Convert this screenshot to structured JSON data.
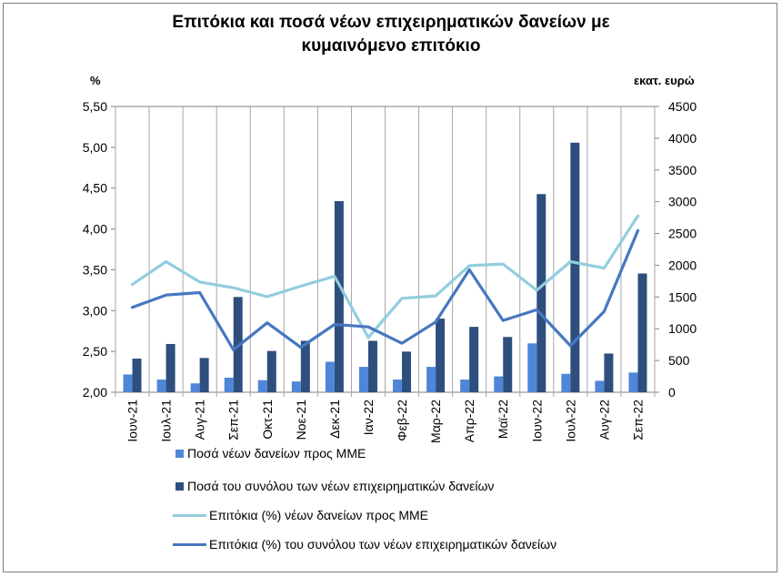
{
  "title_line1": "Επιτόκια και ποσά νέων επιχειρηματικών δανείων με",
  "title_line2": "κυμαινόμενο επιτόκιο",
  "unit_left": "%",
  "unit_right": "εκατ. ευρώ",
  "colors": {
    "sme_amount": "#4f86d7",
    "total_amount": "#2e4f7e",
    "sme_rate": "#93cddd",
    "total_rate": "#4677c0"
  },
  "chart_data": {
    "type": "bar",
    "title": "Επιτόκια και ποσά νέων επιχειρηματικών δανείων με κυμαινόμενο επιτόκιο",
    "categories": [
      "Ιουν-21",
      "Ιουλ-21",
      "Αυγ-21",
      "Σεπ-21",
      "Οκτ-21",
      "Νοε-21",
      "Δεκ-21",
      "Ιαν-22",
      "Φεβ-22",
      "Μαρ-22",
      "Απρ-22",
      "Μαϊ-22",
      "Ιουν-22",
      "Ιουλ-22",
      "Αυγ-22",
      "Σεπ-22"
    ],
    "y_left": {
      "label": "%",
      "min": 2.0,
      "max": 5.5,
      "ticks": [
        "2,00",
        "2,50",
        "3,00",
        "3,50",
        "4,00",
        "4,50",
        "5,00",
        "5,50"
      ]
    },
    "y_right": {
      "label": "εκατ. ευρώ",
      "min": 0,
      "max": 4500,
      "ticks": [
        "0",
        "500",
        "1000",
        "1500",
        "2000",
        "2500",
        "3000",
        "3500",
        "4000",
        "4500"
      ]
    },
    "series": [
      {
        "name": "Ποσά νέων δανείων προς ΜΜΕ",
        "type": "bar",
        "axis": "right",
        "values": [
          280,
          200,
          140,
          230,
          190,
          170,
          480,
          400,
          200,
          400,
          200,
          250,
          770,
          290,
          180,
          310
        ]
      },
      {
        "name": "Ποσά του συνόλου των νέων επιχειρηματικών δανείων",
        "type": "bar",
        "axis": "right",
        "values": [
          530,
          760,
          540,
          1500,
          650,
          810,
          3010,
          810,
          640,
          1160,
          1030,
          870,
          3120,
          3930,
          610,
          1870
        ]
      },
      {
        "name": "Επιτόκια (%) νέων δανείων προς ΜΜΕ",
        "type": "line",
        "axis": "left",
        "values": [
          3.32,
          3.6,
          3.35,
          3.28,
          3.17,
          3.3,
          3.42,
          2.67,
          3.15,
          3.18,
          3.55,
          3.57,
          3.25,
          3.6,
          3.52,
          4.16
        ]
      },
      {
        "name": "Επιτόκια (%) του συνόλου των νέων επιχειρηματικών δανείων",
        "type": "line",
        "axis": "left",
        "values": [
          3.04,
          3.19,
          3.22,
          2.52,
          2.85,
          2.55,
          2.83,
          2.8,
          2.6,
          2.86,
          3.5,
          2.88,
          3.01,
          2.57,
          2.99,
          3.98
        ]
      }
    ]
  }
}
